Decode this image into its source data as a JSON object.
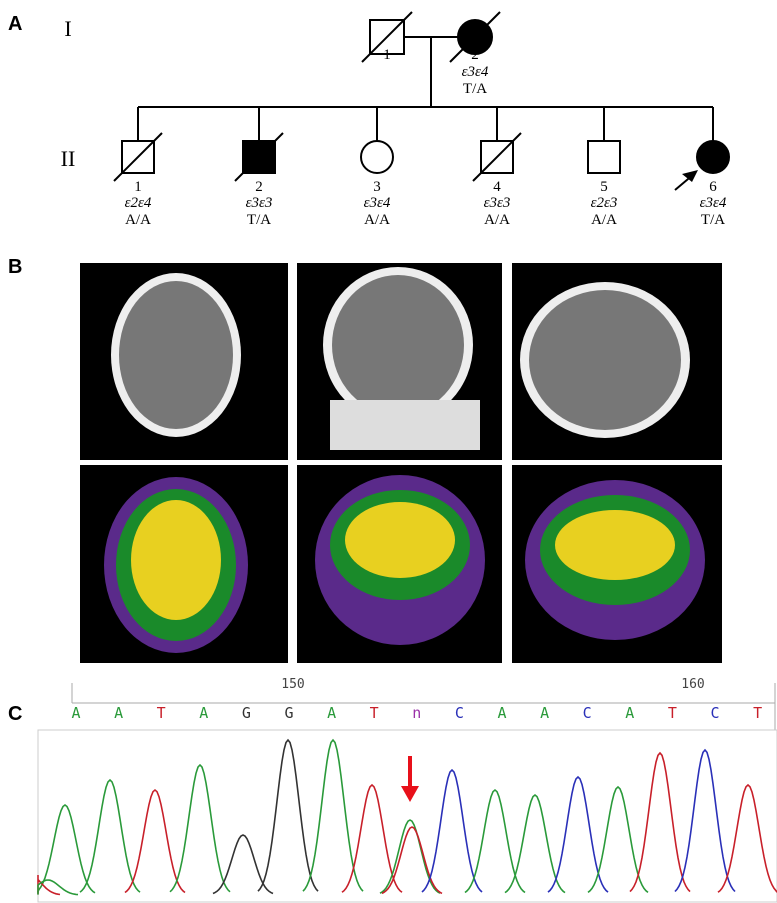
{
  "panel_a": {
    "label": "A",
    "generation_labels": [
      "I",
      "II"
    ],
    "generation_1": [
      {
        "number": "1"
      },
      {
        "number": "2",
        "genotype": "ε3ε4",
        "allele": "T/A"
      }
    ],
    "generation_2": [
      {
        "number": "1",
        "genotype": "ε2ε4",
        "allele": "A/A"
      },
      {
        "number": "2",
        "genotype": "ε3ε3",
        "allele": "T/A"
      },
      {
        "number": "3",
        "genotype": "ε3ε4",
        "allele": "A/A"
      },
      {
        "number": "4",
        "genotype": "ε3ε3",
        "allele": "A/A"
      },
      {
        "number": "5",
        "genotype": "ε2ε3",
        "allele": "A/A"
      },
      {
        "number": "6",
        "genotype": "ε3ε4",
        "allele": "T/A"
      }
    ]
  },
  "panel_b": {
    "label": "B"
  },
  "panel_c": {
    "label": "C",
    "positions": [
      "150",
      "160"
    ],
    "bases": [
      "A",
      "A",
      "T",
      "A",
      "G",
      "G",
      "A",
      "T",
      "n",
      "C",
      "A",
      "A",
      "C",
      "A",
      "T",
      "C",
      "T"
    ]
  }
}
